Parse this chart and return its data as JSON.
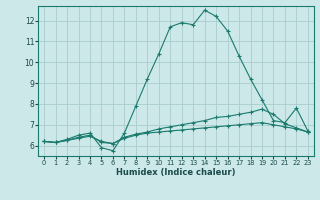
{
  "title": "",
  "xlabel": "Humidex (Indice chaleur)",
  "background_color": "#cce8e8",
  "grid_color": "#aacccc",
  "line_color": "#1a7a6e",
  "xlim": [
    -0.5,
    23.5
  ],
  "ylim": [
    5.5,
    12.7
  ],
  "xticks": [
    0,
    1,
    2,
    3,
    4,
    5,
    6,
    7,
    8,
    9,
    10,
    11,
    12,
    13,
    14,
    15,
    16,
    17,
    18,
    19,
    20,
    21,
    22,
    23
  ],
  "yticks": [
    6,
    7,
    8,
    9,
    10,
    11,
    12
  ],
  "series": [
    {
      "x": [
        0,
        1,
        2,
        3,
        4,
        5,
        6,
        7,
        8,
        9,
        10,
        11,
        12,
        13,
        14,
        15,
        16,
        17,
        18,
        19,
        20,
        21,
        22,
        23
      ],
      "y": [
        6.2,
        6.15,
        6.3,
        6.5,
        6.6,
        5.9,
        5.75,
        6.6,
        7.9,
        9.2,
        10.4,
        11.7,
        11.9,
        11.8,
        12.5,
        12.2,
        11.5,
        10.3,
        9.2,
        8.2,
        7.2,
        7.1,
        7.8,
        6.7
      ],
      "linestyle": "-",
      "marker": "+"
    },
    {
      "x": [
        0,
        1,
        2,
        3,
        4,
        5,
        6,
        7,
        8,
        9,
        10,
        11,
        12,
        13,
        14,
        15,
        16,
        17,
        18,
        19,
        20,
        21,
        22,
        23
      ],
      "y": [
        6.2,
        6.15,
        6.25,
        6.4,
        6.5,
        6.15,
        6.1,
        6.4,
        6.55,
        6.65,
        6.8,
        6.9,
        7.0,
        7.1,
        7.2,
        7.35,
        7.4,
        7.5,
        7.6,
        7.75,
        7.5,
        7.05,
        6.85,
        6.65
      ],
      "linestyle": "-",
      "marker": "+"
    },
    {
      "x": [
        0,
        1,
        2,
        3,
        4,
        5,
        6,
        7,
        8,
        9,
        10,
        11,
        12,
        13,
        14,
        15,
        16,
        17,
        18,
        19,
        20,
        21,
        22,
        23
      ],
      "y": [
        6.2,
        6.15,
        6.25,
        6.35,
        6.45,
        6.2,
        6.1,
        6.35,
        6.5,
        6.6,
        6.65,
        6.7,
        6.75,
        6.8,
        6.85,
        6.9,
        6.95,
        7.0,
        7.05,
        7.1,
        7.0,
        6.9,
        6.8,
        6.65
      ],
      "linestyle": "-",
      "marker": "+"
    }
  ],
  "xlabel_fontsize": 6.0,
  "tick_fontsize_x": 4.8,
  "tick_fontsize_y": 5.5
}
